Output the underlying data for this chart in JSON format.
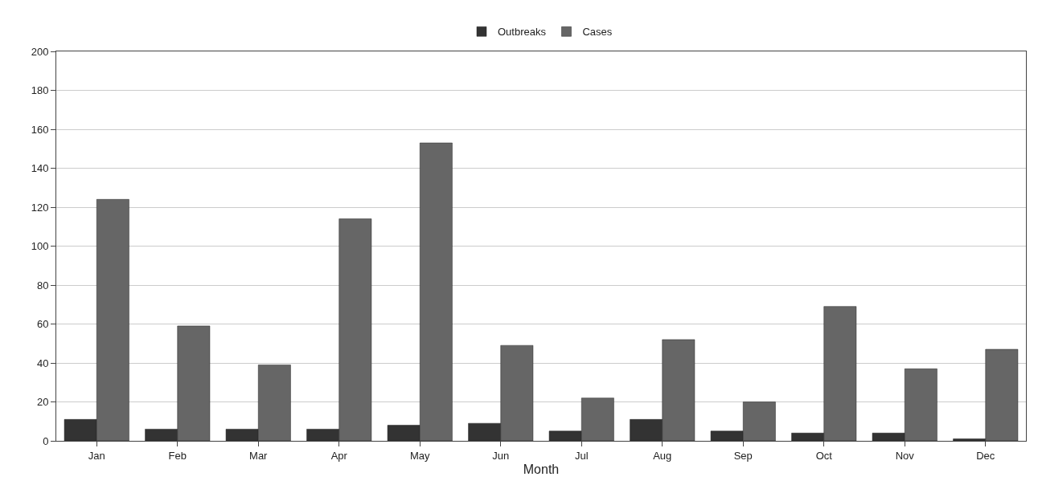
{
  "chart_data": {
    "type": "bar",
    "xlabel": "Month",
    "categories": [
      "Jan",
      "Feb",
      "Mar",
      "Apr",
      "May",
      "Jun",
      "Jul",
      "Aug",
      "Sep",
      "Oct",
      "Nov",
      "Dec"
    ],
    "series": [
      {
        "name": "Outbreaks",
        "color": "#333333",
        "values": [
          11,
          6,
          6,
          6,
          8,
          9,
          5,
          11,
          5,
          4,
          4,
          1
        ]
      },
      {
        "name": "Cases",
        "color": "#666666",
        "values": [
          124,
          59,
          39,
          114,
          153,
          49,
          22,
          52,
          20,
          69,
          37,
          47
        ]
      }
    ],
    "ylim": [
      0,
      200
    ],
    "yticks": [
      0,
      20,
      40,
      60,
      80,
      100,
      120,
      140,
      160,
      180,
      200
    ],
    "grid": "y",
    "legend": "top"
  }
}
